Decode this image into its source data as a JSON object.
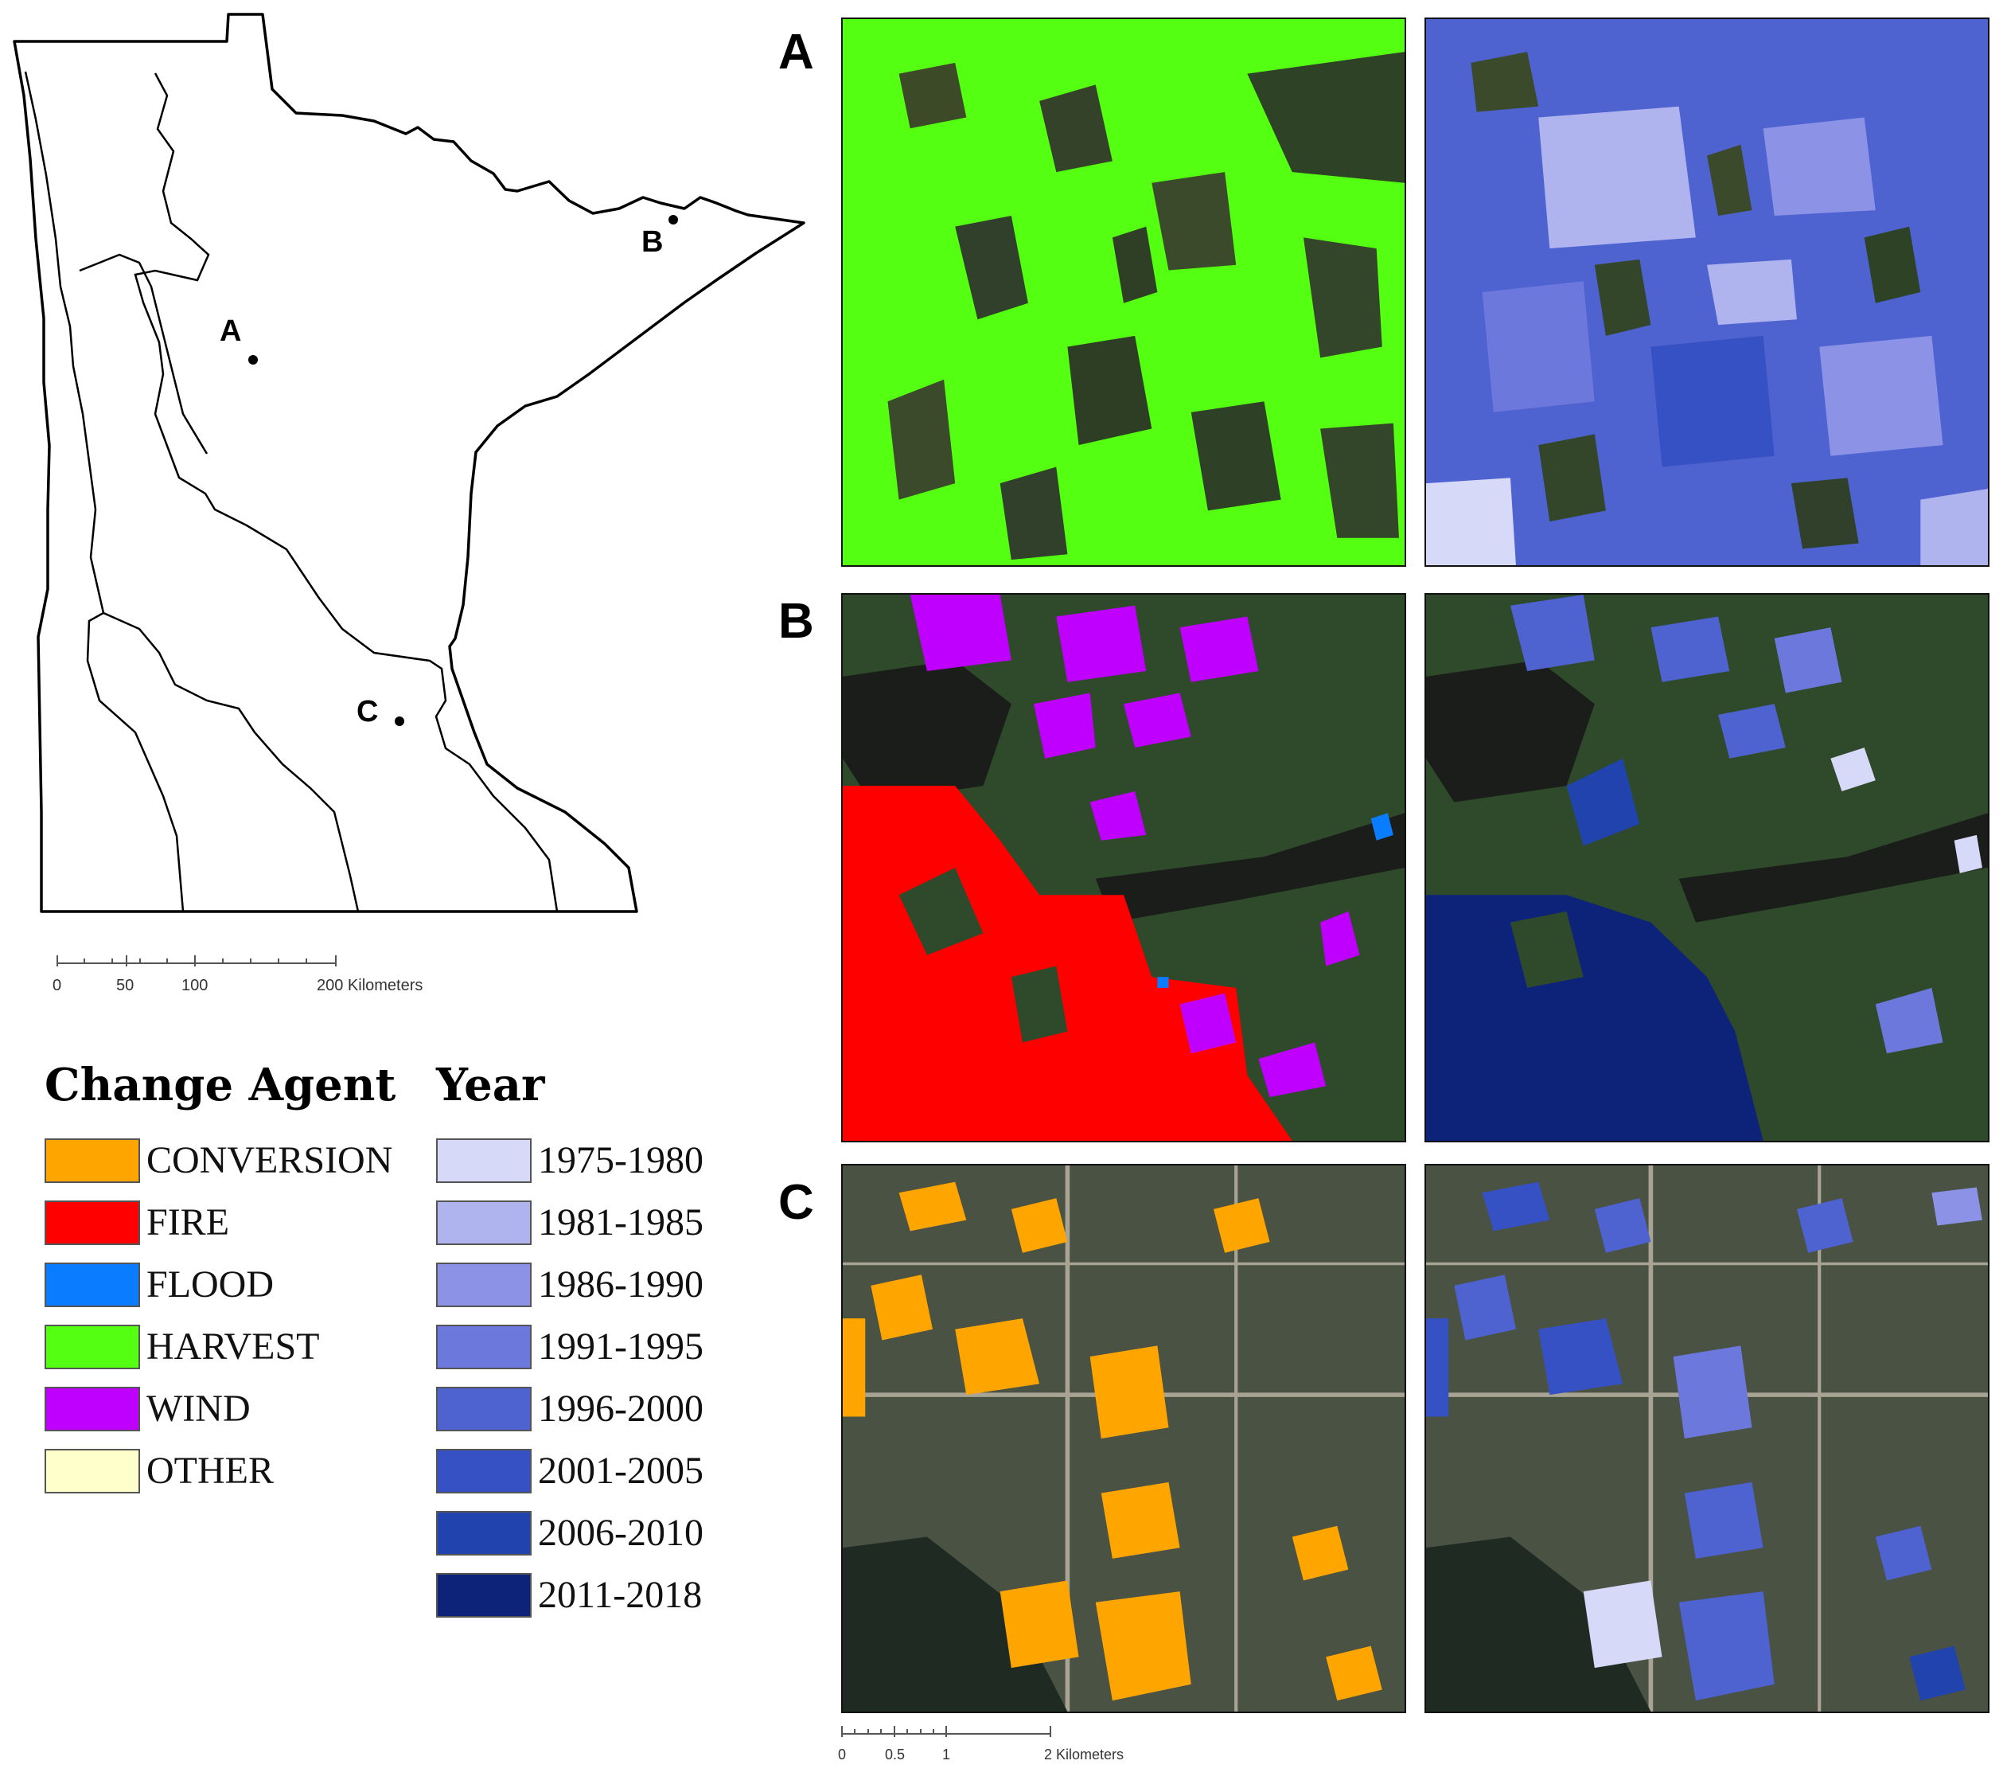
{
  "state_map": {
    "points": [
      {
        "label": "A"
      },
      {
        "label": "B"
      },
      {
        "label": "C"
      }
    ],
    "scalebar": {
      "ticks": [
        "0",
        "50",
        "100",
        "200 Kilometers"
      ]
    }
  },
  "legend": {
    "change_agent": {
      "title": "Change Agent",
      "items": [
        {
          "label": "CONVERSION",
          "color": "#FFA500"
        },
        {
          "label": "FIRE",
          "color": "#FF0000"
        },
        {
          "label": "FLOOD",
          "color": "#0A7CFF"
        },
        {
          "label": "HARVEST",
          "color": "#55FF11"
        },
        {
          "label": "WIND",
          "color": "#C000FF"
        },
        {
          "label": "OTHER",
          "color": "#FFFFCC"
        }
      ]
    },
    "year": {
      "title": "Year",
      "items": [
        {
          "label": "1975-1980",
          "color": "#D7D9F8"
        },
        {
          "label": "1981-1985",
          "color": "#AFB3EE"
        },
        {
          "label": "1986-1990",
          "color": "#8C93E6"
        },
        {
          "label": "1991-1995",
          "color": "#6C78DC"
        },
        {
          "label": "1996-2000",
          "color": "#4E62D0"
        },
        {
          "label": "2001-2005",
          "color": "#3551C4"
        },
        {
          "label": "2006-2010",
          "color": "#2143AE"
        },
        {
          "label": "2011-2018",
          "color": "#0D237A"
        }
      ]
    }
  },
  "panels": {
    "rows": [
      {
        "label": "A"
      },
      {
        "label": "B"
      },
      {
        "label": "C"
      }
    ],
    "scalebar": {
      "ticks": [
        "0",
        "0.5",
        "1",
        "2 Kilometers"
      ]
    }
  }
}
